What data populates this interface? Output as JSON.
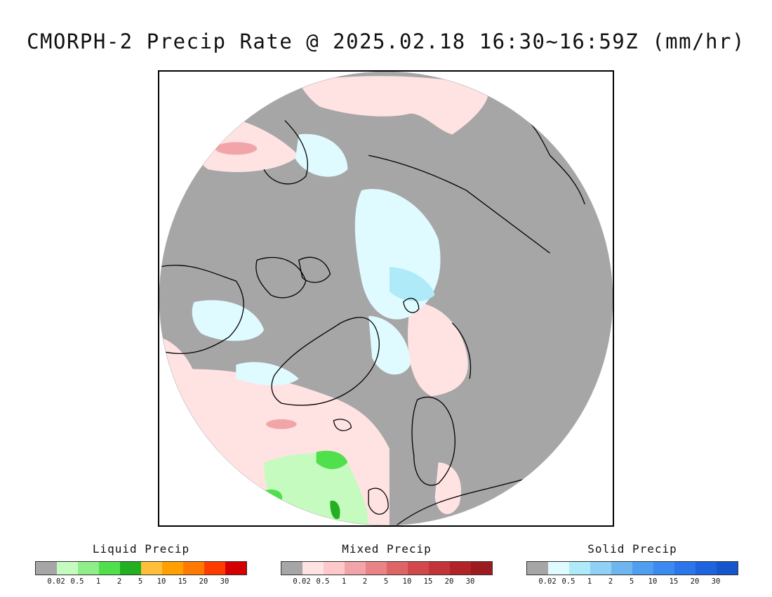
{
  "title": "CMORPH-2 Precip Rate @ 2025.02.18 16:30~16:59Z (mm/hr)",
  "map": {
    "projection": "north polar stereographic",
    "background_color": "#a6a6a6",
    "coastline_color": "#000000"
  },
  "legends": [
    {
      "title": "Liquid Precip",
      "colors": [
        "#a6a6a6",
        "#c6fbc0",
        "#90ee8a",
        "#4fe04b",
        "#22b022",
        "#ffbf3a",
        "#ffa000",
        "#ff7a00",
        "#ff3c00",
        "#d40000"
      ],
      "ticks": [
        "0.02",
        "0.5",
        "1",
        "2",
        "5",
        "10",
        "15",
        "20",
        "30"
      ]
    },
    {
      "title": "Mixed Precip",
      "colors": [
        "#a6a6a6",
        "#ffe2e2",
        "#ffc9cb",
        "#f2a5a8",
        "#e88487",
        "#dd6467",
        "#d1494d",
        "#c23438",
        "#b22328",
        "#9c1b20"
      ],
      "ticks": [
        "0.02",
        "0.5",
        "1",
        "2",
        "5",
        "10",
        "15",
        "20",
        "30"
      ]
    },
    {
      "title": "Solid Precip",
      "colors": [
        "#a6a6a6",
        "#dffbff",
        "#aeeaf7",
        "#8fd0f5",
        "#6fb6f0",
        "#4f9ef0",
        "#3a8af0",
        "#2a76ea",
        "#1e64de",
        "#1656cc"
      ],
      "ticks": [
        "0.02",
        "0.5",
        "1",
        "2",
        "5",
        "10",
        "15",
        "20",
        "30"
      ]
    }
  ]
}
